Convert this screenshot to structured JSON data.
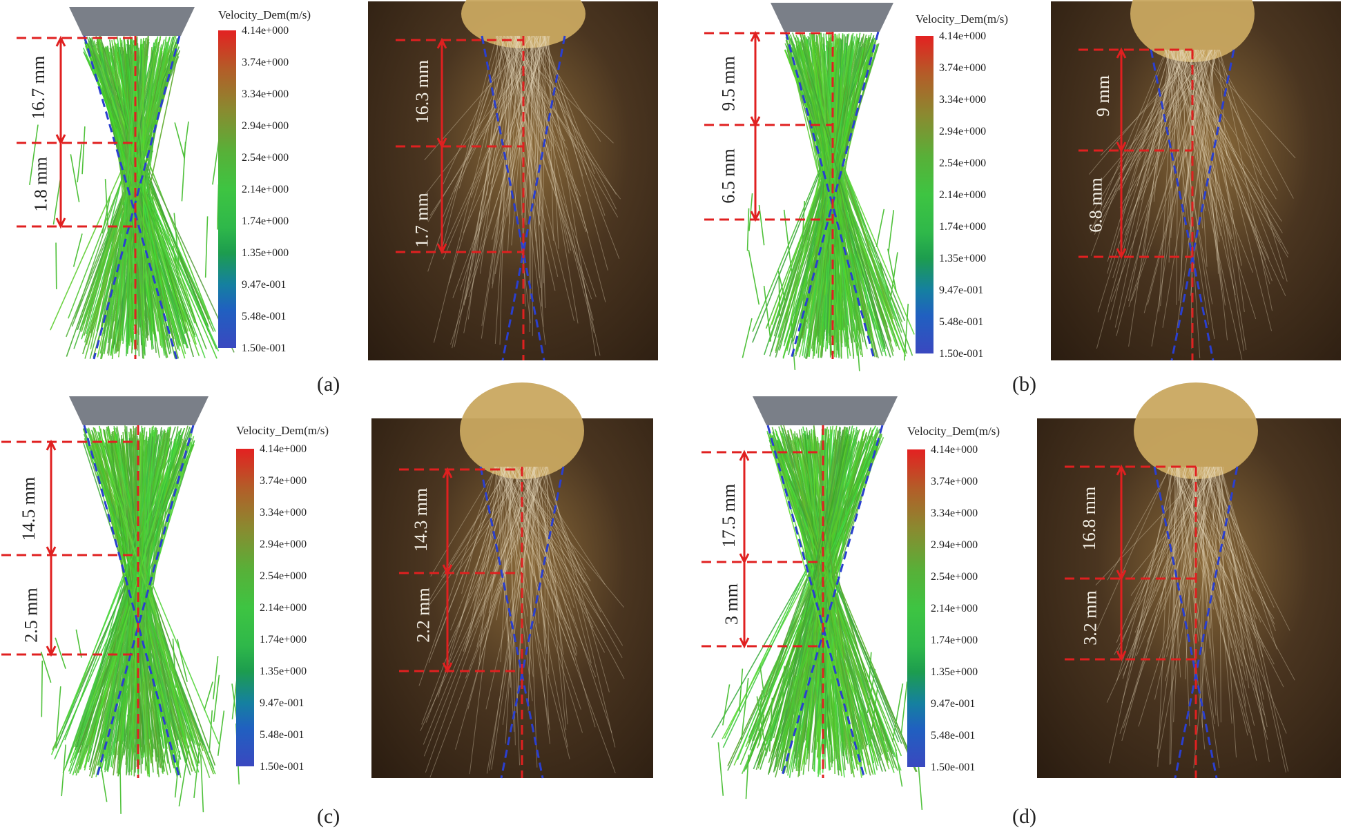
{
  "legend": {
    "title": "Velocity_Dem(m/s)",
    "ticks": [
      "4.14e+000",
      "3.74e+000",
      "3.34e+000",
      "2.94e+000",
      "2.54e+000",
      "2.14e+000",
      "1.74e+000",
      "1.35e+000",
      "9.47e-001",
      "5.48e-001",
      "1.50e-001"
    ]
  },
  "panels": {
    "a": {
      "caption": "(a)",
      "sim_upper": "16.7 mm",
      "sim_lower": "1.8 mm",
      "exp_upper": "16.3 mm",
      "exp_lower": "1.7 mm"
    },
    "b": {
      "caption": "(b)",
      "sim_upper": "9.5 mm",
      "sim_lower": "6.5 mm",
      "exp_upper": "9 mm",
      "exp_lower": "6.8 mm"
    },
    "c": {
      "caption": "(c)",
      "sim_upper": "14.5 mm",
      "sim_lower": "2.5 mm",
      "exp_upper": "14.3 mm",
      "exp_lower": "2.2 mm"
    },
    "d": {
      "caption": "(d)",
      "sim_upper": "17.5 mm",
      "sim_lower": "3 mm",
      "exp_upper": "16.8 mm",
      "exp_lower": "3.2 mm"
    }
  },
  "colors": {
    "dimension_line": "#e02020",
    "cone_line": "#2a3fd0",
    "particle": "#4fc13a",
    "colorbar_top": "#e32121",
    "colorbar_bottom": "#3a48c0"
  }
}
